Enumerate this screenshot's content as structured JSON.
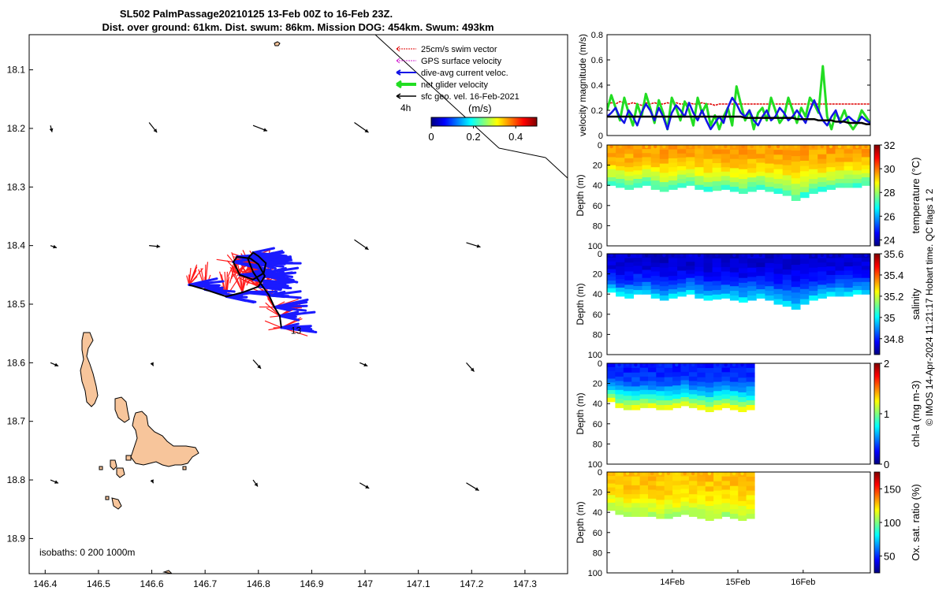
{
  "title": {
    "line1": "SL502 PalmPassage20210125 13-Feb 00Z to 16-Feb 23Z.",
    "line2": "Dist. over ground: 61km. Dist. swum: 86km. Mission DOG: 454km. Swum: 493km"
  },
  "credit": "© IMOS 14-Apr-2024 11:21:17 Hobart time. QC flags 1  2",
  "colors": {
    "swim_vector": "#e00000",
    "gps_velocity": "#d020d0",
    "dive_avg": "#1414e6",
    "net_glider": "#22dd22",
    "sfc_geo": "#000000",
    "land": "#f7c59b",
    "track_red": "#ff1a1a",
    "track_blue": "#1a1aff"
  },
  "chart_data": [
    {
      "id": "map",
      "type": "scatter",
      "x_ticks": [
        "146.4",
        "146.5",
        "146.6",
        "146.7",
        "146.8",
        "146.9",
        "147",
        "147.1",
        "147.2",
        "147.3"
      ],
      "y_ticks": [
        "18.1",
        "18.2",
        "18.3",
        "18.4",
        "18.5",
        "18.6",
        "18.7",
        "18.8",
        "18.9"
      ],
      "xlim": [
        146.37,
        147.38
      ],
      "ylim": [
        18.04,
        18.96
      ],
      "y_reversed": true,
      "legend": [
        {
          "label": "25cm/s swim vector",
          "color_key": "swim_vector"
        },
        {
          "label": "GPS surface velocity",
          "color_key": "gps_velocity"
        },
        {
          "label": "dive-avg current veloc.",
          "color_key": "dive_avg"
        },
        {
          "label": "net glider velocity",
          "color_key": "net_glider"
        },
        {
          "label": "sfc geo. vel. 16-Feb-2021",
          "color_key": "sfc_geo"
        }
      ],
      "colorbar": {
        "title": "(m/s)",
        "ticks": [
          "0",
          "0.2",
          "0.4"
        ],
        "range": [
          0,
          0.5
        ],
        "label_4h": "4h"
      },
      "isobaths_label": "isobaths: 0   200  1000m",
      "day_label": "13",
      "track": [
        [
          146.67,
          18.467
        ],
        [
          146.7,
          18.475
        ],
        [
          146.74,
          18.487
        ],
        [
          146.77,
          18.48
        ],
        [
          146.8,
          18.47
        ],
        [
          146.812,
          18.452
        ],
        [
          146.8,
          18.432
        ],
        [
          146.785,
          18.422
        ],
        [
          146.76,
          18.419
        ],
        [
          146.753,
          18.428
        ],
        [
          146.765,
          18.45
        ],
        [
          146.79,
          18.458
        ],
        [
          146.81,
          18.447
        ],
        [
          146.814,
          18.43
        ],
        [
          146.8,
          18.418
        ],
        [
          146.79,
          18.412
        ],
        [
          146.78,
          18.422
        ],
        [
          146.79,
          18.445
        ],
        [
          146.806,
          18.467
        ],
        [
          146.82,
          18.485
        ],
        [
          146.83,
          18.505
        ],
        [
          146.84,
          18.52
        ],
        [
          146.843,
          18.54
        ]
      ],
      "current_arrows": [
        {
          "lon": 146.41,
          "lat": 18.195,
          "u": 0.1,
          "v": 0.6
        },
        {
          "lon": 146.595,
          "lat": 18.19,
          "u": 0.5,
          "v": 0.9
        },
        {
          "lon": 146.79,
          "lat": 18.195,
          "u": 0.9,
          "v": 0.5
        },
        {
          "lon": 146.98,
          "lat": 18.19,
          "u": 0.9,
          "v": 0.9
        },
        {
          "lon": 146.41,
          "lat": 18.4,
          "u": 0.4,
          "v": 0.2
        },
        {
          "lon": 146.595,
          "lat": 18.4,
          "u": 0.7,
          "v": 0.1
        },
        {
          "lon": 146.98,
          "lat": 18.39,
          "u": 0.9,
          "v": 0.9
        },
        {
          "lon": 147.19,
          "lat": 18.395,
          "u": 0.9,
          "v": 0.4
        },
        {
          "lon": 146.41,
          "lat": 18.6,
          "u": 0.5,
          "v": 0.3
        },
        {
          "lon": 146.6,
          "lat": 18.6,
          "u": 0.1,
          "v": 0.3
        },
        {
          "lon": 146.79,
          "lat": 18.595,
          "u": 0.5,
          "v": 0.8
        },
        {
          "lon": 146.99,
          "lat": 18.6,
          "u": 0.5,
          "v": 0.3
        },
        {
          "lon": 147.19,
          "lat": 18.6,
          "u": 0.5,
          "v": 0.8
        },
        {
          "lon": 146.41,
          "lat": 18.8,
          "u": 0.5,
          "v": 0.3
        },
        {
          "lon": 146.6,
          "lat": 18.8,
          "u": 0.1,
          "v": 0.3
        },
        {
          "lon": 146.79,
          "lat": 18.8,
          "u": 0.3,
          "v": 0.6
        },
        {
          "lon": 146.99,
          "lat": 18.805,
          "u": 0.6,
          "v": 0.5
        },
        {
          "lon": 147.19,
          "lat": 18.805,
          "u": 0.8,
          "v": 0.7
        }
      ]
    },
    {
      "id": "velocity",
      "type": "line",
      "ylabel": "velocity magnitude (m/s)",
      "y_ticks": [
        "0",
        "0.2",
        "0.4",
        "0.6",
        "0.8"
      ],
      "ylim": [
        0,
        0.8
      ],
      "series": [
        {
          "color_key": "swim_vector",
          "values": [
            0.25,
            0.26,
            0.25,
            0.27,
            0.26,
            0.25,
            0.26,
            0.25,
            0.24,
            0.26,
            0.25,
            0.26,
            0.25,
            0.25,
            0.26,
            0.25,
            0.26,
            0.25,
            0.25,
            0.26,
            0.25,
            0.25,
            0.26,
            0.25,
            0.25,
            0.24,
            0.25,
            0.25,
            0.25,
            0.25,
            0.25,
            0.25,
            0.25,
            0.25,
            0.25,
            0.25,
            0.25,
            0.25,
            0.25,
            0.25,
            0.25,
            0.25,
            0.25,
            0.25,
            0.25,
            0.25,
            0.25,
            0.25,
            0.25,
            0.25,
            0.25,
            0.25,
            0.25,
            0.25,
            0.25,
            0.25,
            0.25,
            0.25,
            0.25,
            0.25,
            0.25,
            0.25
          ]
        },
        {
          "color_key": "net_glider",
          "values": [
            0.2,
            0.32,
            0.22,
            0.12,
            0.3,
            0.18,
            0.08,
            0.25,
            0.15,
            0.33,
            0.22,
            0.1,
            0.28,
            0.18,
            0.05,
            0.3,
            0.22,
            0.12,
            0.27,
            0.2,
            0.08,
            0.3,
            0.18,
            0.25,
            0.08,
            0.16,
            0.05,
            0.15,
            0.22,
            0.08,
            0.39,
            0.25,
            0.12,
            0.2,
            0.05,
            0.18,
            0.22,
            0.12,
            0.3,
            0.2,
            0.1,
            0.15,
            0.3,
            0.2,
            0.1,
            0.22,
            0.15,
            0.3,
            0.25,
            0.18,
            0.55,
            0.15,
            0.05,
            0.18,
            0.12,
            0.2,
            0.1,
            0.05,
            0.1,
            0.2,
            0.15,
            0.1
          ]
        },
        {
          "color_key": "dive_avg",
          "values": [
            0.15,
            0.18,
            0.22,
            0.14,
            0.1,
            0.2,
            0.15,
            0.08,
            0.18,
            0.25,
            0.2,
            0.12,
            0.22,
            0.15,
            0.05,
            0.18,
            0.24,
            0.2,
            0.15,
            0.26,
            0.18,
            0.12,
            0.2,
            0.12,
            0.05,
            0.1,
            0.15,
            0.1,
            0.22,
            0.3,
            0.25,
            0.18,
            0.15,
            0.2,
            0.12,
            0.08,
            0.15,
            0.2,
            0.12,
            0.15,
            0.22,
            0.18,
            0.12,
            0.15,
            0.2,
            0.15,
            0.1,
            0.2,
            0.28,
            0.2,
            0.12,
            0.08,
            0.15,
            0.2,
            0.1,
            0.12,
            0.15,
            0.12,
            0.1,
            0.15,
            0.12,
            0.1
          ]
        },
        {
          "color_key": "sfc_geo",
          "values": [
            0.15,
            0.15,
            0.15,
            0.15,
            0.15,
            0.15,
            0.15,
            0.15,
            0.15,
            0.15,
            0.15,
            0.15,
            0.15,
            0.15,
            0.15,
            0.15,
            0.15,
            0.15,
            0.15,
            0.15,
            0.15,
            0.15,
            0.15,
            0.15,
            0.15,
            0.15,
            0.15,
            0.15,
            0.15,
            0.15,
            0.15,
            0.15,
            0.14,
            0.14,
            0.14,
            0.14,
            0.14,
            0.14,
            0.14,
            0.14,
            0.14,
            0.14,
            0.14,
            0.14,
            0.13,
            0.13,
            0.13,
            0.13,
            0.13,
            0.12,
            0.12,
            0.12,
            0.12,
            0.11,
            0.11,
            0.11,
            0.1,
            0.1,
            0.1,
            0.1,
            0.09,
            0.09
          ]
        }
      ]
    },
    {
      "id": "temperature",
      "type": "heatmap",
      "ylabel": "Depth (m)",
      "clabel": "temperature (°C)",
      "y_ticks": [
        "0",
        "20",
        "40",
        "60",
        "80",
        "100"
      ],
      "cticks": [
        "24",
        "26",
        "28",
        "30",
        "32"
      ],
      "crange": [
        23.5,
        32
      ],
      "xlim": [
        0,
        1
      ],
      "end_frac": 1.0,
      "mld": [
        40,
        42,
        44,
        42,
        40,
        44,
        46,
        44,
        42,
        40,
        44,
        46,
        45,
        44,
        46,
        48,
        46,
        44,
        46,
        48,
        50,
        55,
        52,
        48,
        46,
        44,
        42,
        42,
        42,
        40
      ],
      "surface_value": 29.6,
      "bottom_value": 27.2
    },
    {
      "id": "salinity",
      "type": "heatmap",
      "ylabel": "Depth (m)",
      "clabel": "salinity",
      "y_ticks": [
        "0",
        "20",
        "40",
        "60",
        "80",
        "100"
      ],
      "cticks": [
        "34.8",
        "35",
        "35.2",
        "35.4",
        "35.6"
      ],
      "crange": [
        34.65,
        35.6
      ],
      "xlim": [
        0,
        1
      ],
      "end_frac": 1.0,
      "mld": [
        38,
        42,
        44,
        40,
        40,
        44,
        46,
        44,
        42,
        40,
        44,
        46,
        45,
        44,
        46,
        48,
        46,
        44,
        46,
        50,
        52,
        55,
        50,
        46,
        44,
        42,
        42,
        42,
        40,
        40
      ],
      "surface_value": 34.72,
      "bottom_value": 34.98
    },
    {
      "id": "chl",
      "type": "heatmap",
      "ylabel": "Depth (m)",
      "clabel": "chl-a (mg m-3)",
      "y_ticks": [
        "0",
        "20",
        "40",
        "60",
        "80",
        "100"
      ],
      "cticks": [
        "0",
        "1",
        "2"
      ],
      "crange": [
        0,
        2
      ],
      "xlim": [
        0,
        1
      ],
      "end_frac": 0.56,
      "mld": [
        38,
        44,
        46,
        46,
        44,
        44,
        46,
        46,
        44,
        42,
        44,
        46,
        48,
        46,
        44,
        46,
        48,
        46
      ],
      "surface_value": 0.3,
      "bottom_value": 1.2
    },
    {
      "id": "oxygen",
      "type": "heatmap",
      "ylabel": "Depth (m)",
      "clabel": "Ox. sat. ratio (%)",
      "y_ticks": [
        "0",
        "20",
        "40",
        "60",
        "80",
        "100"
      ],
      "cticks": [
        "50",
        "100",
        "150"
      ],
      "crange": [
        25,
        175
      ],
      "xlim": [
        0,
        1
      ],
      "end_frac": 0.56,
      "x_ticks": [
        "14Feb",
        "15Feb",
        "16Feb"
      ],
      "x_tick_pos": [
        0.248,
        0.497,
        0.745
      ],
      "mld": [
        38,
        42,
        44,
        44,
        44,
        44,
        46,
        46,
        44,
        42,
        44,
        46,
        48,
        46,
        44,
        46,
        48,
        46
      ],
      "surface_value": 128,
      "bottom_value": 106
    }
  ]
}
